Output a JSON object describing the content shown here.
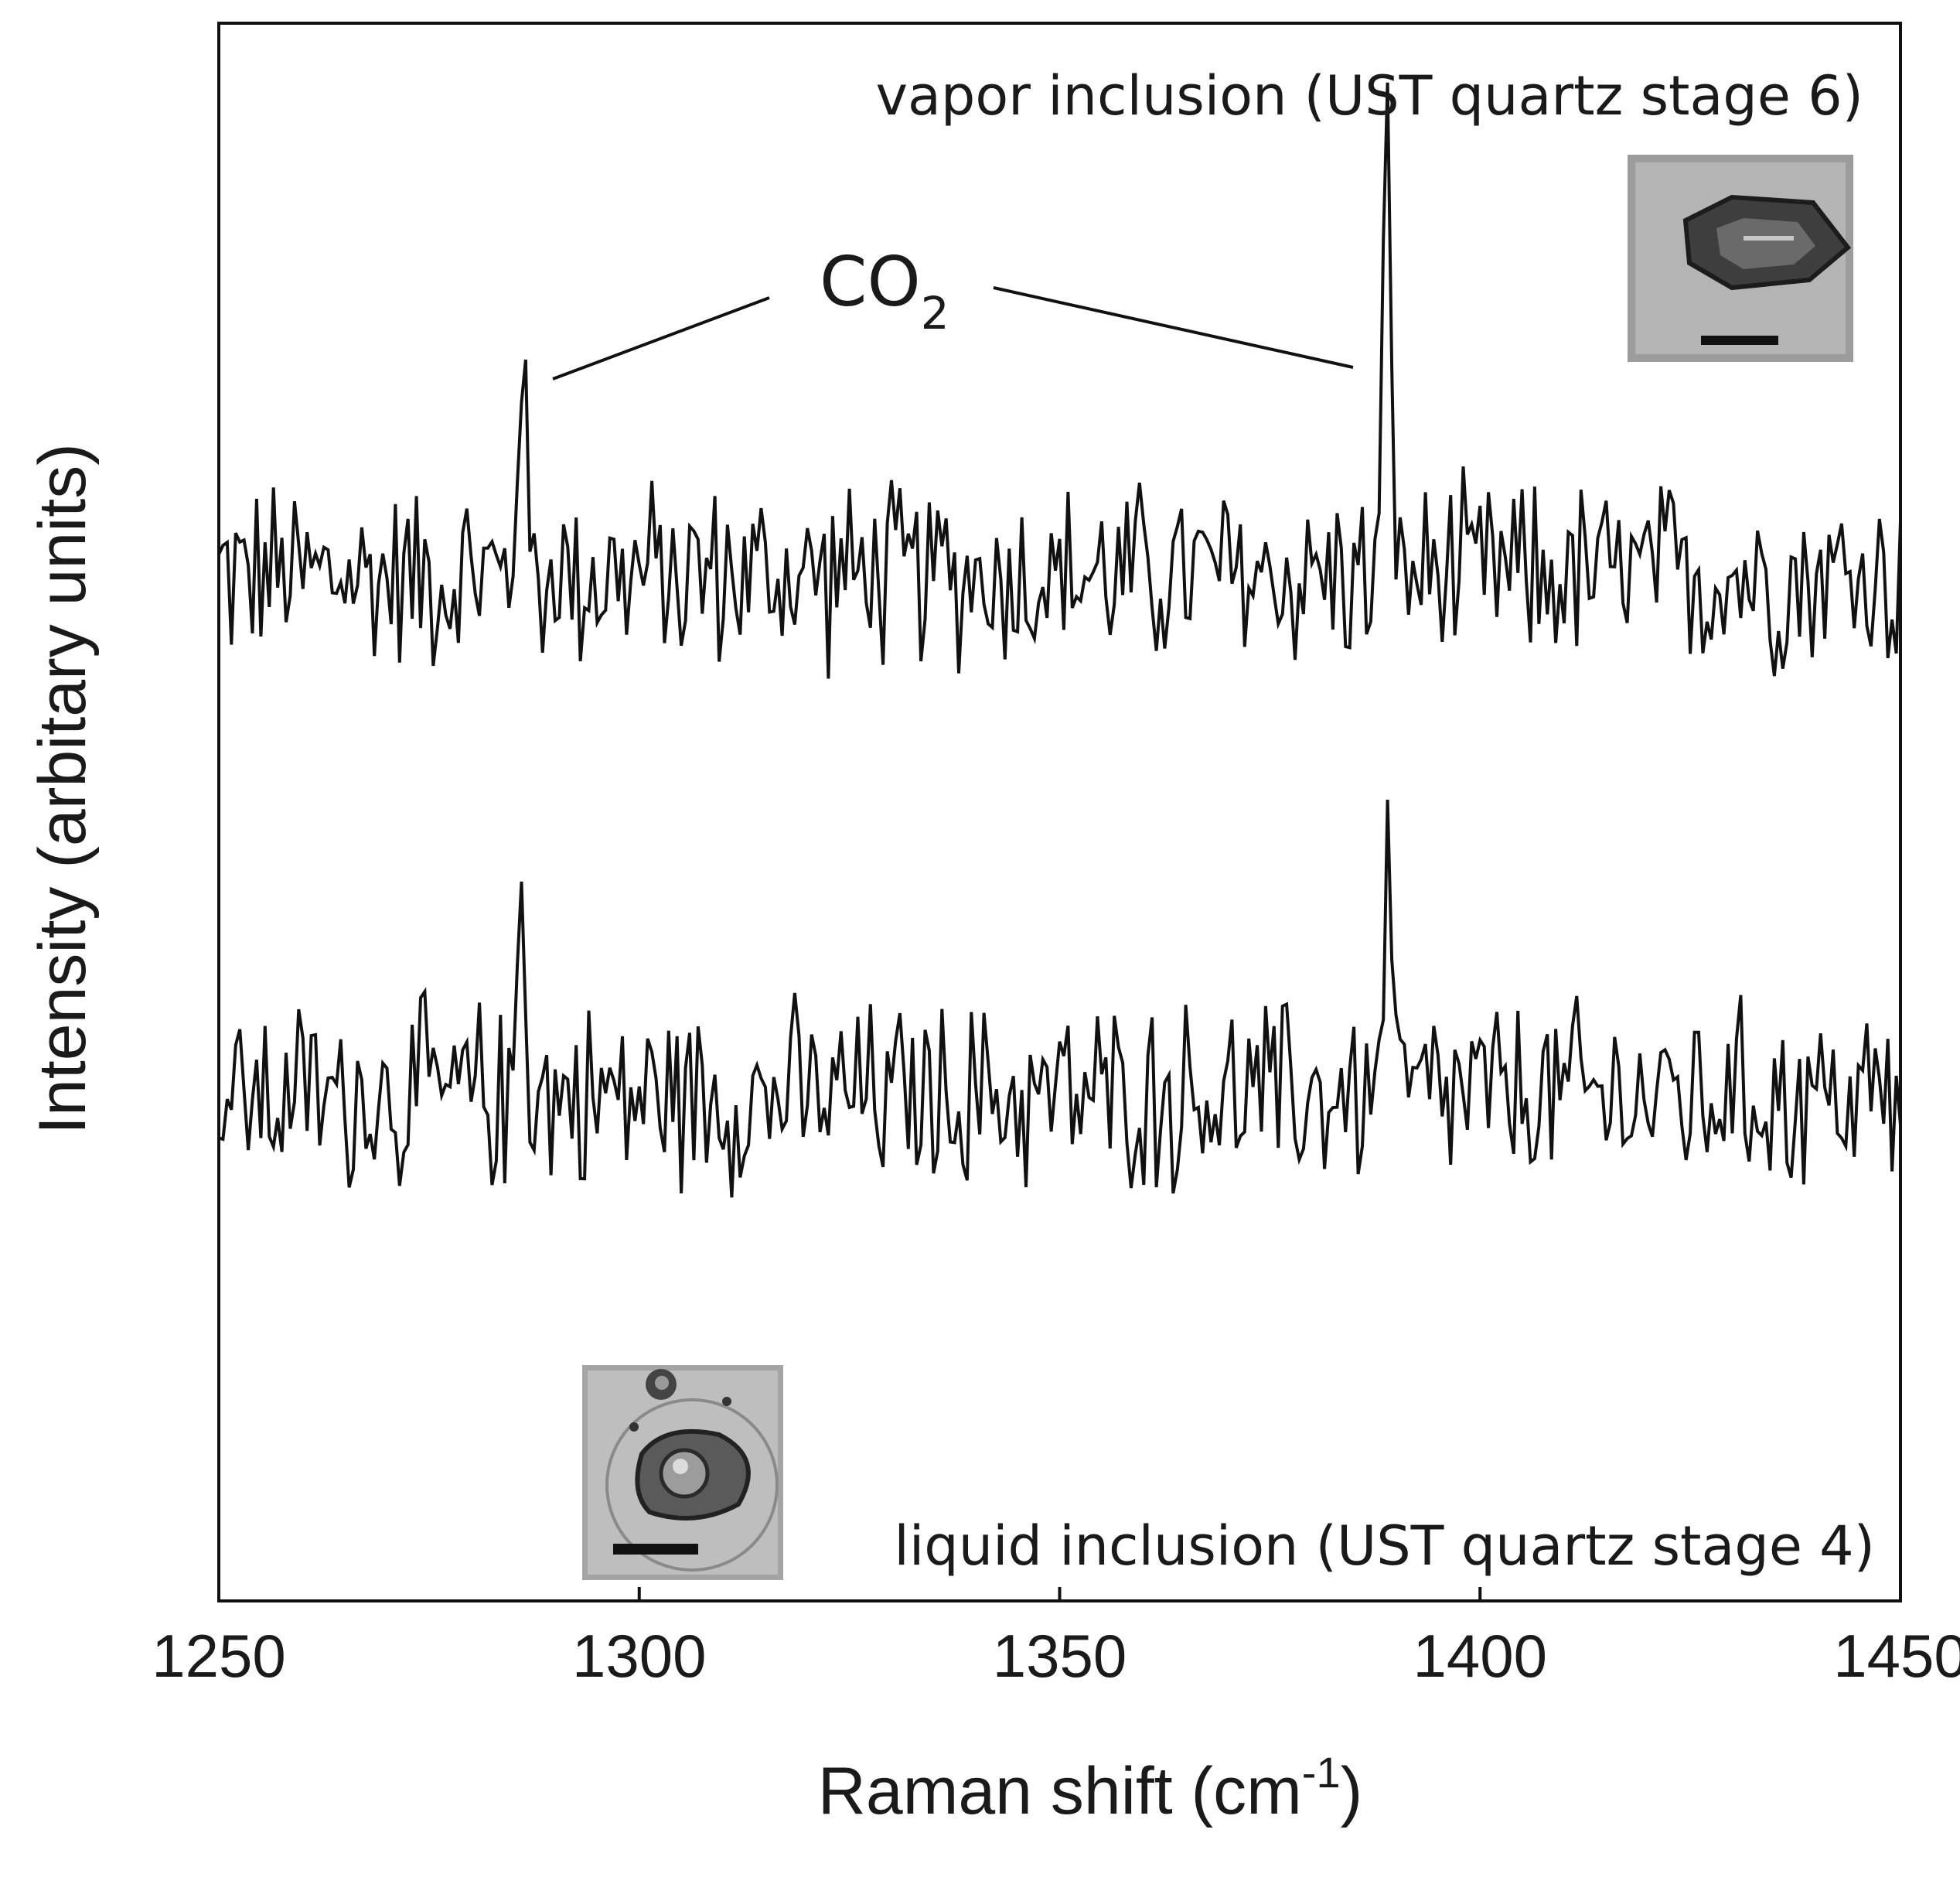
{
  "chart_data": {
    "type": "line",
    "title": "",
    "xlabel": "Raman shift (cm",
    "xlabel_superscript": "-1",
    "xlabel_suffix": ")",
    "ylabel": "Intensity (arbitary units)",
    "xlim": [
      1250,
      1450
    ],
    "ylim": [
      0,
      10
    ],
    "xticks": [
      1250,
      1300,
      1350,
      1400,
      1450
    ],
    "y_tick_labels": false,
    "grid": false,
    "legend": "none",
    "line_color": "#111111",
    "annotation": {
      "text": "CO",
      "subscript": "2",
      "targets_x": [
        1286,
        1389
      ]
    },
    "series": [
      {
        "label_text": "vapor inclusion (UST quartz stage 6)",
        "peaks": [
          {
            "x": 1286,
            "y": 8.0
          },
          {
            "x": 1389,
            "y": 9.4
          }
        ],
        "baseline": 6.5,
        "noise_amplitude": 0.6
      },
      {
        "label_text": "liquid inclusion (UST quartz stage 4)",
        "peaks": [
          {
            "x": 1286,
            "y": 4.6
          },
          {
            "x": 1389,
            "y": 4.9
          }
        ],
        "baseline": 3.2,
        "noise_amplitude": 0.6
      }
    ],
    "insets": [
      {
        "name": "vapor-inclusion-micrograph",
        "shape": "elongated bubble",
        "scale_bar": true
      },
      {
        "name": "liquid-inclusion-micrograph",
        "shape": "rounded inclusion with bubble",
        "scale_bar": true
      }
    ]
  }
}
